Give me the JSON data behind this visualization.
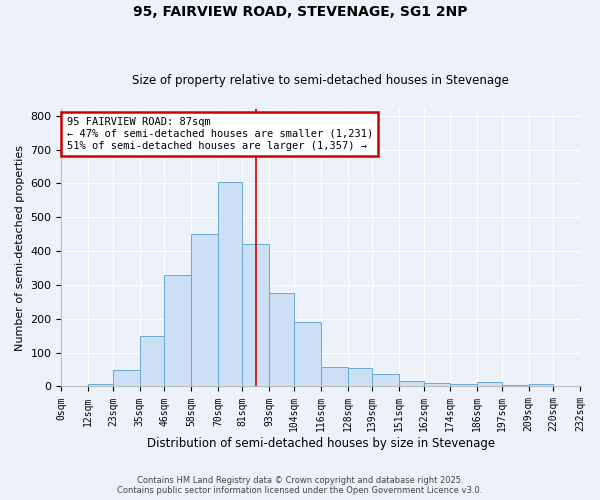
{
  "title": "95, FAIRVIEW ROAD, STEVENAGE, SG1 2NP",
  "subtitle": "Size of property relative to semi-detached houses in Stevenage",
  "xlabel": "Distribution of semi-detached houses by size in Stevenage",
  "ylabel": "Number of semi-detached properties",
  "bin_labels": [
    "0sqm",
    "12sqm",
    "23sqm",
    "35sqm",
    "46sqm",
    "58sqm",
    "70sqm",
    "81sqm",
    "93sqm",
    "104sqm",
    "116sqm",
    "128sqm",
    "139sqm",
    "151sqm",
    "162sqm",
    "174sqm",
    "186sqm",
    "197sqm",
    "209sqm",
    "220sqm",
    "232sqm"
  ],
  "bin_edges": [
    0,
    12,
    23,
    35,
    46,
    58,
    70,
    81,
    93,
    104,
    116,
    128,
    139,
    151,
    162,
    174,
    186,
    197,
    209,
    220,
    232
  ],
  "bar_heights": [
    2,
    8,
    50,
    150,
    330,
    450,
    605,
    420,
    275,
    190,
    58,
    55,
    38,
    15,
    10,
    8,
    12,
    3,
    8,
    0
  ],
  "bar_color": "#ccdff5",
  "bar_edge_color": "#6aaad4",
  "property_size": 87,
  "vline_color": "#cc0000",
  "annotation_title": "95 FAIRVIEW ROAD: 87sqm",
  "annotation_line1": "← 47% of semi-detached houses are smaller (1,231)",
  "annotation_line2": "51% of semi-detached houses are larger (1,357) →",
  "annotation_box_color": "#cc0000",
  "ylim": [
    0,
    820
  ],
  "yticks": [
    0,
    100,
    200,
    300,
    400,
    500,
    600,
    700,
    800
  ],
  "background_color": "#edf2fa",
  "grid_color": "#ffffff",
  "footer_line1": "Contains HM Land Registry data © Crown copyright and database right 2025.",
  "footer_line2": "Contains public sector information licensed under the Open Government Licence v3.0."
}
